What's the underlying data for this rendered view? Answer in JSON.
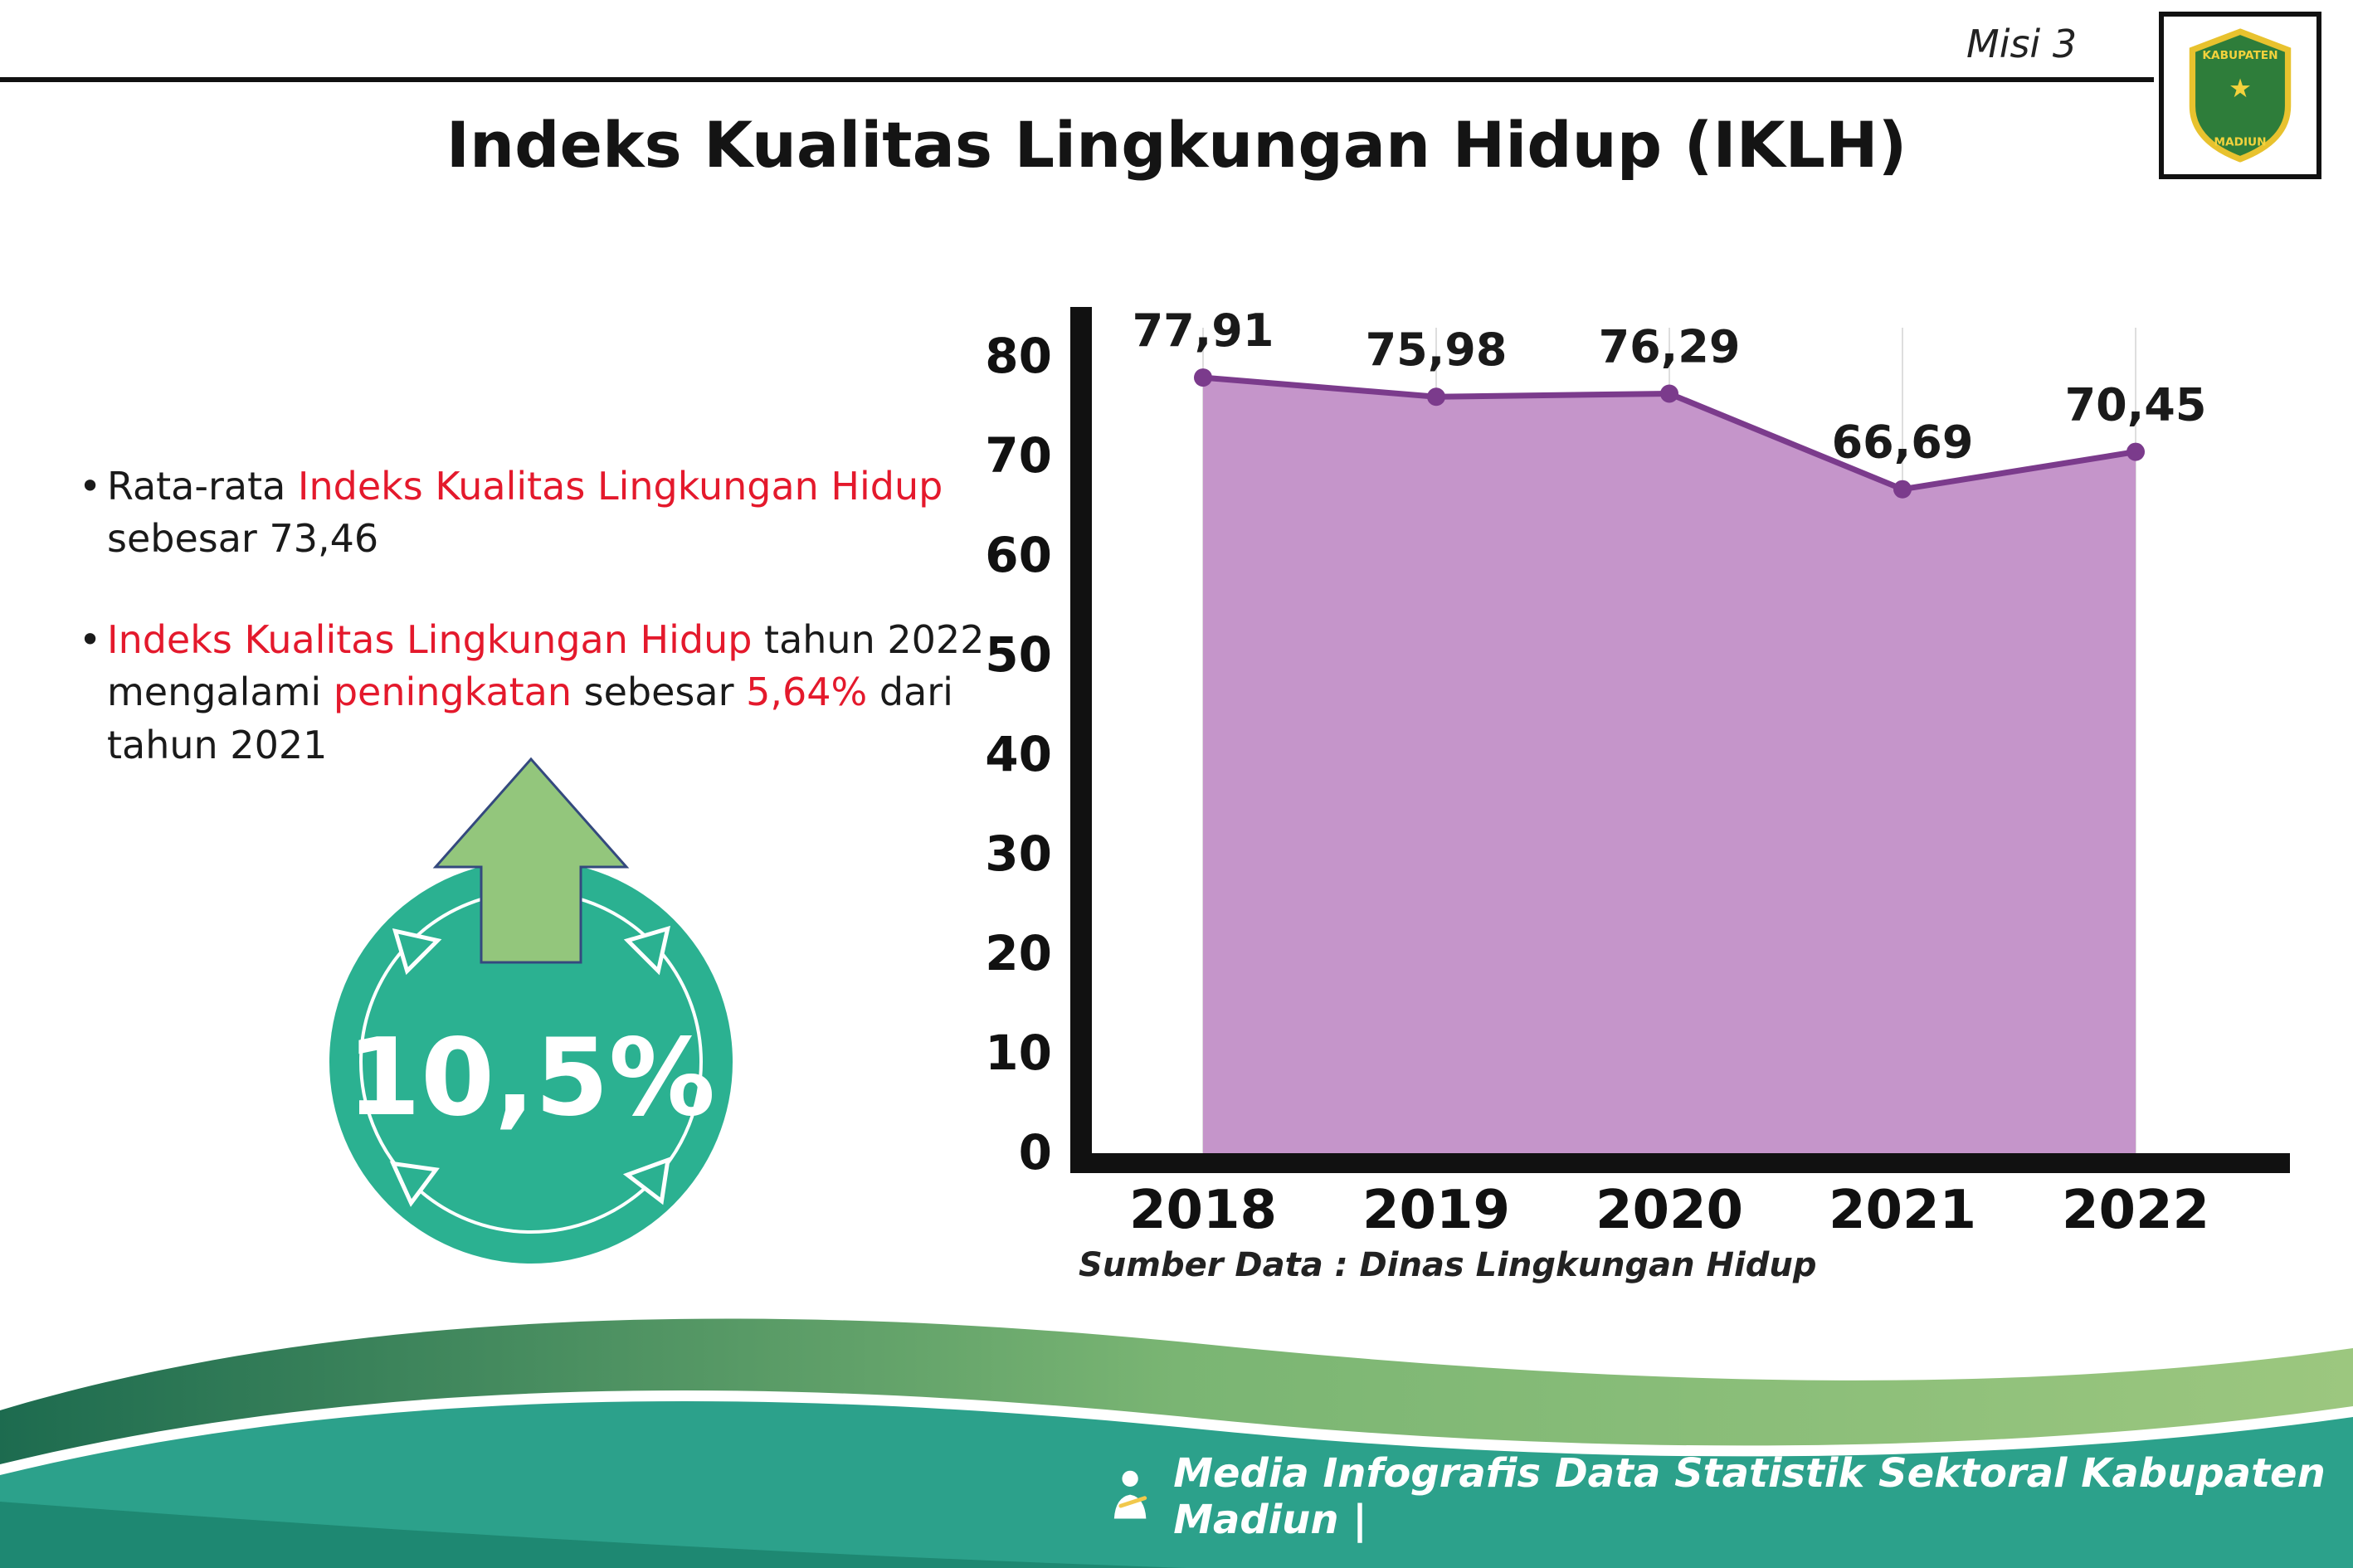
{
  "header": {
    "misi": "Misi 3",
    "title": "Indeks Kualitas Lingkungan Hidup (IKLH)",
    "logo_top": "KABUPATEN",
    "logo_bottom": "MADIUN",
    "logo_star": "★"
  },
  "bullets": {
    "marker": "•",
    "item1": {
      "pre": "Rata-rata ",
      "red": "Indeks Kualitas Lingkungan Hidup",
      "post": " sebesar 73,46"
    },
    "item2": {
      "red1": "Indeks Kualitas Lingkungan Hidup",
      "mid1": " tahun 2022 mengalami ",
      "red2": "peningkatan",
      "mid2": " sebesar ",
      "red3": "5,64%",
      "post": " dari tahun 2021"
    }
  },
  "highlight": {
    "percent": "10,5%"
  },
  "chart_data": {
    "type": "area",
    "title": "Indeks Kualitas Lingkungan Hidup (IKLH)",
    "categories": [
      "2018",
      "2019",
      "2020",
      "2021",
      "2022"
    ],
    "values": [
      77.91,
      75.98,
      76.29,
      66.69,
      70.45
    ],
    "point_labels": [
      "77,91",
      "75,98",
      "76,29",
      "66,69",
      "70,45"
    ],
    "ylim": [
      0,
      80
    ],
    "ytick_step": 10,
    "grid": "vertical",
    "legend": "none",
    "area_color": "#c595ca",
    "line_color": "#7b3b8c",
    "source_note": "Sumber Data : Dinas Lingkungan Hidup"
  },
  "footer": {
    "text": "Media Infografis Data Statistik Sektoral Kabupaten Madiun |"
  },
  "colors": {
    "accent_red": "#e4192c",
    "circle_teal": "#2bb191",
    "arrow_green": "#93c67c",
    "footer_teal": "#2ca18b"
  }
}
